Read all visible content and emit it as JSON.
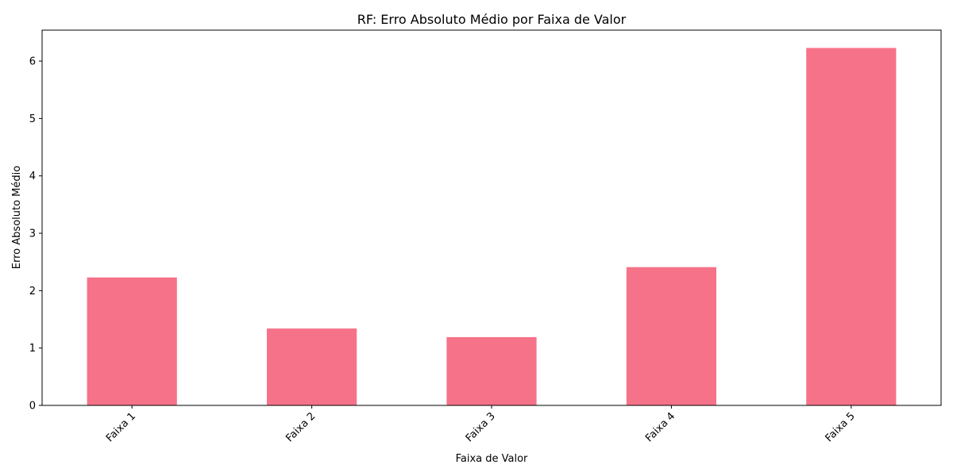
{
  "chart_data": {
    "type": "bar",
    "title": "RF: Erro Absoluto Médio por Faixa de Valor",
    "xlabel": "Faixa de Valor",
    "ylabel": "Erro Absoluto Médio",
    "categories": [
      "Faixa 1",
      "Faixa 2",
      "Faixa 3",
      "Faixa 4",
      "Faixa 5"
    ],
    "values": [
      2.23,
      1.34,
      1.19,
      2.41,
      6.23
    ],
    "ylim": [
      0,
      6.54
    ],
    "yticks": [
      "0",
      "1",
      "2",
      "3",
      "4",
      "5",
      "6"
    ],
    "bar_color": "#f67289",
    "grid": false,
    "xtick_rotation_deg": 45
  }
}
